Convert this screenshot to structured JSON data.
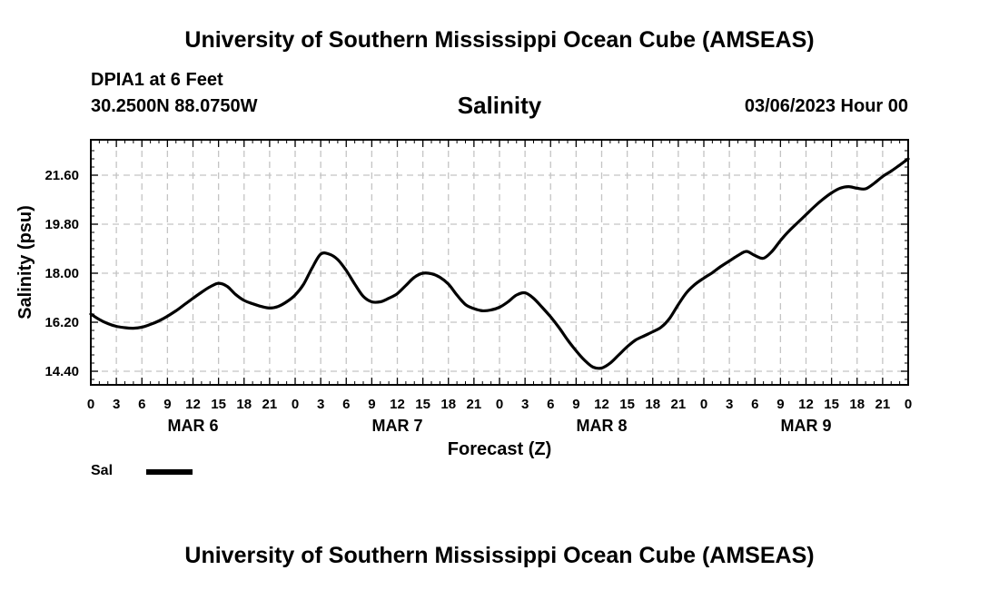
{
  "header": {
    "title": "University of Southern Mississippi Ocean Cube (AMSEAS)",
    "station": "DPIA1 at 6 Feet",
    "coords": "30.2500N  88.0750W",
    "plot_name": "Salinity",
    "datetime": "03/06/2023 Hour 00"
  },
  "footer": {
    "title": "University of Southern Mississippi Ocean Cube (AMSEAS)"
  },
  "legend": {
    "label": "Sal",
    "color": "#000000"
  },
  "chart_data": {
    "type": "line",
    "title": "Salinity",
    "xlabel": "Forecast (Z)",
    "ylabel": "Salinity (psu)",
    "xlim": [
      0,
      96
    ],
    "ylim": [
      13.9,
      22.9
    ],
    "x_ticks": [
      0,
      3,
      6,
      9,
      12,
      15,
      18,
      21,
      24,
      27,
      30,
      33,
      36,
      39,
      42,
      45,
      48,
      51,
      54,
      57,
      60,
      63,
      66,
      69,
      72,
      75,
      78,
      81,
      84,
      87,
      90,
      93,
      96
    ],
    "x_tick_labels": [
      "0",
      "3",
      "6",
      "9",
      "12",
      "15",
      "18",
      "21",
      "0",
      "3",
      "6",
      "9",
      "12",
      "15",
      "18",
      "21",
      "0",
      "3",
      "6",
      "9",
      "12",
      "15",
      "18",
      "21",
      "0",
      "3",
      "6",
      "9",
      "12",
      "15",
      "18",
      "21",
      "0"
    ],
    "day_labels": [
      {
        "hour": 12,
        "label": "MAR 6"
      },
      {
        "hour": 36,
        "label": "MAR 7"
      },
      {
        "hour": 60,
        "label": "MAR 8"
      },
      {
        "hour": 84,
        "label": "MAR 9"
      }
    ],
    "y_ticks": [
      14.4,
      16.2,
      18.0,
      19.8,
      21.6
    ],
    "y_tick_labels": [
      "14.40",
      "16.20",
      "18.00",
      "19.80",
      "21.60"
    ],
    "grid": true,
    "series": [
      {
        "name": "Sal",
        "x": [
          0,
          1,
          2,
          3,
          4,
          5,
          6,
          7,
          8,
          9,
          10,
          11,
          12,
          13,
          14,
          15,
          16,
          17,
          18,
          19,
          20,
          21,
          22,
          23,
          24,
          25,
          26,
          27,
          28,
          29,
          30,
          31,
          32,
          33,
          34,
          35,
          36,
          37,
          38,
          39,
          40,
          41,
          42,
          43,
          44,
          45,
          46,
          47,
          48,
          49,
          50,
          51,
          52,
          53,
          54,
          55,
          56,
          57,
          58,
          59,
          60,
          61,
          62,
          63,
          64,
          65,
          66,
          67,
          68,
          69,
          70,
          71,
          72,
          73,
          74,
          75,
          76,
          77,
          78,
          79,
          80,
          81,
          82,
          83,
          84,
          85,
          86,
          87,
          88,
          89,
          90,
          91,
          92,
          93,
          94,
          95,
          96
        ],
        "y": [
          16.5,
          16.3,
          16.15,
          16.05,
          16.0,
          15.98,
          16.02,
          16.12,
          16.25,
          16.42,
          16.62,
          16.85,
          17.08,
          17.3,
          17.5,
          17.63,
          17.52,
          17.22,
          17.0,
          16.88,
          16.78,
          16.72,
          16.78,
          16.95,
          17.2,
          17.6,
          18.2,
          18.7,
          18.7,
          18.5,
          18.1,
          17.6,
          17.15,
          16.95,
          16.95,
          17.08,
          17.25,
          17.55,
          17.85,
          18.0,
          17.98,
          17.85,
          17.6,
          17.2,
          16.85,
          16.7,
          16.62,
          16.65,
          16.75,
          16.95,
          17.2,
          17.28,
          17.08,
          16.75,
          16.4,
          16.0,
          15.55,
          15.15,
          14.8,
          14.55,
          14.52,
          14.7,
          15.0,
          15.3,
          15.55,
          15.7,
          15.85,
          16.02,
          16.35,
          16.85,
          17.3,
          17.6,
          17.82,
          18.02,
          18.25,
          18.45,
          18.65,
          18.8,
          18.65,
          18.55,
          18.8,
          19.2,
          19.55,
          19.85,
          20.15,
          20.45,
          20.72,
          20.95,
          21.12,
          21.18,
          21.12,
          21.1,
          21.3,
          21.55,
          21.75,
          21.97,
          22.2
        ]
      }
    ]
  }
}
